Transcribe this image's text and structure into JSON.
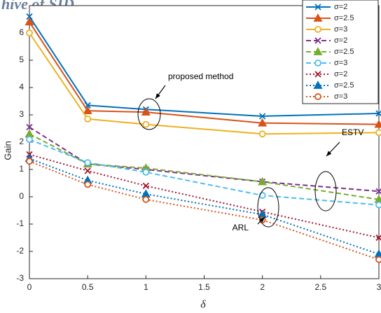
{
  "chart_data": {
    "type": "line",
    "watermark": "hive of SID",
    "x_label": "δ",
    "y_label": "Gain",
    "x": [
      0,
      0.5,
      1,
      2,
      3
    ],
    "xlim": [
      0,
      3
    ],
    "xticks": [
      0,
      0.5,
      1,
      1.5,
      2,
      2.5,
      3
    ],
    "ylim": [
      -3,
      7
    ],
    "yticks": [
      -3,
      -2,
      -1,
      0,
      1,
      2,
      3,
      4,
      5,
      6
    ],
    "legend": "upper right",
    "annotations": [
      "proposed method",
      "ESTV",
      "ARL"
    ],
    "series": [
      {
        "name": "σ=2",
        "color": "#0072BD",
        "linestyle": "solid",
        "marker": "x",
        "values": [
          6.6,
          3.35,
          3.2,
          2.95,
          3.05
        ]
      },
      {
        "name": "σ=2.5",
        "color": "#D95319",
        "linestyle": "solid",
        "marker": "triangle",
        "values": [
          6.4,
          3.15,
          3.1,
          2.7,
          2.65
        ]
      },
      {
        "name": "σ=3",
        "color": "#EDB120",
        "linestyle": "solid",
        "marker": "circle",
        "values": [
          6.0,
          2.85,
          2.65,
          2.3,
          2.35
        ]
      },
      {
        "name": "σ=2",
        "color": "#7E2F8E",
        "linestyle": "dashed",
        "marker": "x",
        "values": [
          2.55,
          1.2,
          1.0,
          0.55,
          0.2
        ]
      },
      {
        "name": "σ=2.5",
        "color": "#77AC30",
        "linestyle": "dashed",
        "marker": "triangle",
        "values": [
          2.3,
          1.2,
          1.05,
          0.55,
          -0.1
        ]
      },
      {
        "name": "σ=3",
        "color": "#4DBEEE",
        "linestyle": "dashed",
        "marker": "circle",
        "values": [
          2.1,
          1.25,
          0.9,
          0.05,
          -0.3
        ]
      },
      {
        "name": "σ=2",
        "color": "#A2142F",
        "linestyle": "dotted",
        "marker": "x",
        "values": [
          1.55,
          0.95,
          0.4,
          -0.55,
          -1.5
        ]
      },
      {
        "name": "σ=2.5",
        "color": "#0072BD",
        "linestyle": "dotted",
        "marker": "triangle",
        "values": [
          1.4,
          0.6,
          0.1,
          -0.65,
          -2.1
        ]
      },
      {
        "name": "σ=3",
        "color": "#D95319",
        "linestyle": "dotted",
        "marker": "circle",
        "values": [
          1.3,
          0.45,
          -0.1,
          -0.85,
          -2.3
        ]
      }
    ]
  }
}
